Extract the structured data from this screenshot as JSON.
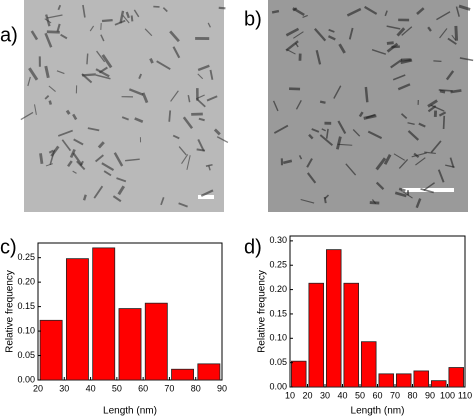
{
  "panels": [
    {
      "label": "a)"
    },
    {
      "label": "b)"
    }
  ],
  "chart_data": [
    {
      "type": "histogram",
      "panel_label": "c)",
      "x_label": "Length (nm)",
      "y_label": "Relative frequency",
      "bins": [
        20,
        30,
        40,
        50,
        60,
        70,
        80,
        90
      ],
      "values": [
        0.122,
        0.248,
        0.27,
        0.146,
        0.157,
        0.022,
        0.033
      ],
      "color": "#ff0000",
      "xlim": [
        20,
        90
      ],
      "xticks": [
        20,
        30,
        40,
        50,
        60,
        70,
        80,
        90
      ],
      "ylim": [
        0,
        0.28
      ],
      "yticks": [
        {
          "value": 0,
          "label": "0.00"
        },
        {
          "value": 0.05,
          "label": "0.05"
        },
        {
          "value": 0.1,
          "label": "0.10"
        },
        {
          "value": 0.15,
          "label": "0.15"
        },
        {
          "value": 0.2,
          "label": "0.20"
        },
        {
          "value": 0.25,
          "label": "0.25"
        }
      ]
    },
    {
      "type": "histogram",
      "panel_label": "d)",
      "x_label": "Length (nm)",
      "y_label": "Relative frequency",
      "bins": [
        10,
        20,
        30,
        40,
        50,
        60,
        70,
        80,
        90,
        100,
        110
      ],
      "values": [
        0.053,
        0.213,
        0.282,
        0.213,
        0.093,
        0.027,
        0.027,
        0.033,
        0.013,
        0.04
      ],
      "color": "#ff0000",
      "xlim": [
        10,
        110
      ],
      "xticks": [
        10,
        20,
        30,
        40,
        50,
        60,
        70,
        80,
        90,
        100,
        110
      ],
      "ylim": [
        0,
        0.31
      ],
      "yticks": [
        {
          "value": 0,
          "label": "0.00"
        },
        {
          "value": 0.05,
          "label": "0.05"
        },
        {
          "value": 0.1,
          "label": "0.10"
        },
        {
          "value": 0.15,
          "label": "0.15"
        },
        {
          "value": 0.2,
          "label": "0.20"
        },
        {
          "value": 0.25,
          "label": "0.25"
        },
        {
          "value": 0.3,
          "label": "0.30"
        }
      ]
    }
  ]
}
